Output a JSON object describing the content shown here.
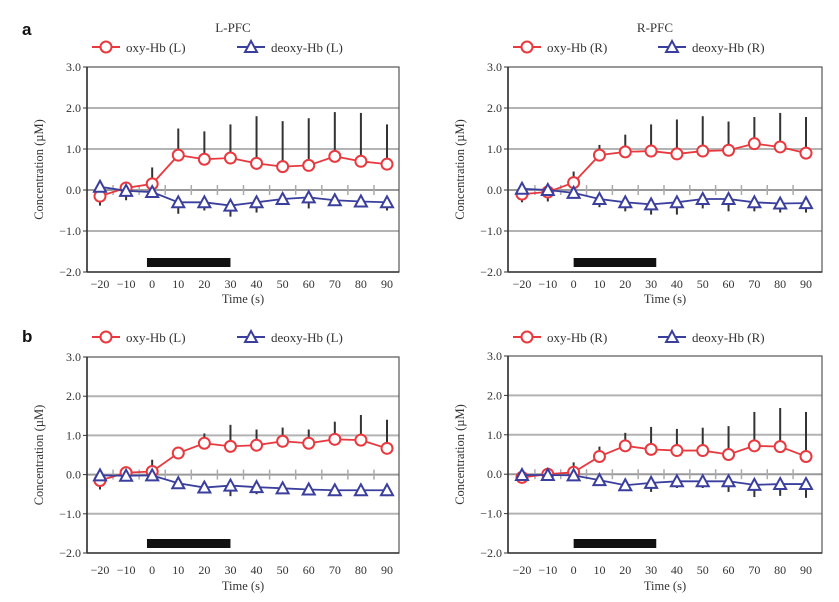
{
  "figure": {
    "row_labels": [
      "a",
      "b"
    ]
  },
  "chart_data": [
    {
      "id": "a-left",
      "type": "line",
      "row": "a",
      "title": "L-PFC",
      "xlabel": "Time (s)",
      "ylabel": "Concentration (µM)",
      "x": [
        -20,
        -10,
        0,
        10,
        20,
        30,
        40,
        50,
        60,
        70,
        80,
        90
      ],
      "xticks": [
        "−20",
        "−10",
        "0",
        "10",
        "20",
        "30",
        "40",
        "50",
        "60",
        "70",
        "80",
        "90"
      ],
      "ylim": [
        -2.0,
        3.0
      ],
      "yticks": [
        "3.0",
        "2.0",
        "1.0",
        "0.0",
        "−1.0",
        "−2.0"
      ],
      "ytick_values": [
        3.0,
        2.0,
        1.0,
        0.0,
        -1.0,
        -2.0
      ],
      "grid": "horizontal",
      "stimulus_bar": [
        -2,
        30
      ],
      "legend": "top",
      "series": [
        {
          "name": "oxy-Hb (L)",
          "marker": "circle",
          "color": "#e8393f",
          "values": [
            -0.15,
            0.05,
            0.15,
            0.85,
            0.75,
            0.78,
            0.65,
            0.57,
            0.6,
            0.82,
            0.7,
            0.63
          ],
          "error_top": [
            -0.15,
            0.05,
            0.55,
            1.5,
            1.43,
            1.6,
            1.8,
            1.68,
            1.75,
            1.9,
            1.88,
            1.6
          ]
        },
        {
          "name": "deoxy-Hb (L)",
          "marker": "triangle",
          "color": "#3a3f9e",
          "values": [
            0.08,
            -0.02,
            -0.05,
            -0.3,
            -0.3,
            -0.38,
            -0.3,
            -0.22,
            -0.18,
            -0.25,
            -0.28,
            -0.3
          ],
          "error_bottom": [
            -0.38,
            -0.25,
            -0.05,
            -0.58,
            -0.5,
            -0.65,
            -0.55,
            -0.22,
            -0.45,
            -0.25,
            -0.28,
            -0.5
          ]
        }
      ]
    },
    {
      "id": "a-right",
      "type": "line",
      "row": "a",
      "title": "R-PFC",
      "xlabel": "Time (s)",
      "ylabel": "Concentration (µM)",
      "x": [
        -20,
        -10,
        0,
        10,
        20,
        30,
        40,
        50,
        60,
        70,
        80,
        90
      ],
      "xticks": [
        "−20",
        "−10",
        "0",
        "10",
        "20",
        "30",
        "40",
        "50",
        "60",
        "70",
        "80",
        "90"
      ],
      "ylim": [
        -2.0,
        3.0
      ],
      "yticks": [
        "3.0",
        "2.0",
        "1.0",
        "0.0",
        "−1.0",
        "−2.0"
      ],
      "ytick_values": [
        3.0,
        2.0,
        1.0,
        0.0,
        -1.0,
        -2.0
      ],
      "grid": "horizontal",
      "stimulus_bar": [
        0,
        32
      ],
      "legend": "top",
      "series": [
        {
          "name": "oxy-Hb (R)",
          "marker": "circle",
          "color": "#e8393f",
          "values": [
            -0.1,
            -0.05,
            0.18,
            0.85,
            0.93,
            0.95,
            0.88,
            0.95,
            0.97,
            1.13,
            1.05,
            0.9
          ],
          "error_top": [
            -0.1,
            -0.05,
            0.45,
            1.1,
            1.35,
            1.6,
            1.72,
            1.8,
            1.67,
            1.78,
            1.88,
            1.78
          ]
        },
        {
          "name": "deoxy-Hb (R)",
          "marker": "triangle",
          "color": "#3a3f9e",
          "values": [
            0.03,
            0.0,
            -0.07,
            -0.22,
            -0.3,
            -0.35,
            -0.3,
            -0.22,
            -0.22,
            -0.3,
            -0.33,
            -0.32
          ],
          "error_bottom": [
            -0.3,
            -0.28,
            -0.07,
            -0.42,
            -0.52,
            -0.6,
            -0.6,
            -0.45,
            -0.52,
            -0.52,
            -0.55,
            -0.55
          ]
        }
      ]
    },
    {
      "id": "b-left",
      "type": "line",
      "row": "b",
      "title": "",
      "xlabel": "Time (s)",
      "ylabel": "Concentration (µM)",
      "x": [
        -20,
        -10,
        0,
        10,
        20,
        30,
        40,
        50,
        60,
        70,
        80,
        90
      ],
      "xticks": [
        "−20",
        "−10",
        "0",
        "10",
        "20",
        "30",
        "40",
        "50",
        "60",
        "70",
        "80",
        "90"
      ],
      "ylim": [
        -2.0,
        3.0
      ],
      "yticks": [
        "3.0",
        "2.0",
        "1.0",
        "0.0",
        "−1.0",
        "−2.0"
      ],
      "ytick_values": [
        3.0,
        2.0,
        1.0,
        0.0,
        -1.0,
        -2.0
      ],
      "grid": "horizontal",
      "stimulus_bar": [
        -2,
        30
      ],
      "legend": "top",
      "series": [
        {
          "name": "oxy-Hb (L)",
          "marker": "circle",
          "color": "#e8393f",
          "values": [
            -0.15,
            0.05,
            0.08,
            0.55,
            0.8,
            0.72,
            0.75,
            0.85,
            0.8,
            0.9,
            0.88,
            0.67
          ],
          "error_top": [
            -0.15,
            0.05,
            0.38,
            0.55,
            1.05,
            1.27,
            1.15,
            1.2,
            1.15,
            1.35,
            1.52,
            1.4
          ]
        },
        {
          "name": "deoxy-Hb (L)",
          "marker": "triangle",
          "color": "#3a3f9e",
          "values": [
            -0.02,
            -0.03,
            -0.02,
            -0.22,
            -0.33,
            -0.28,
            -0.32,
            -0.35,
            -0.38,
            -0.4,
            -0.4,
            -0.4
          ],
          "error_bottom": [
            -0.38,
            -0.03,
            -0.02,
            -0.22,
            -0.33,
            -0.55,
            -0.5,
            -0.35,
            -0.5,
            -0.4,
            -0.4,
            -0.55
          ]
        }
      ]
    },
    {
      "id": "b-right",
      "type": "line",
      "row": "b",
      "title": "",
      "xlabel": "Time (s)",
      "ylabel": "Concentration (µM)",
      "x": [
        -20,
        -10,
        0,
        10,
        20,
        30,
        40,
        50,
        60,
        70,
        80,
        90
      ],
      "xticks": [
        "−20",
        "−10",
        "0",
        "10",
        "20",
        "30",
        "40",
        "50",
        "60",
        "70",
        "80",
        "90"
      ],
      "ylim": [
        -2.0,
        3.0
      ],
      "yticks": [
        "3.0",
        "2.0",
        "1.0",
        "0.0",
        "−1.0",
        "−2.0"
      ],
      "ytick_values": [
        3.0,
        2.0,
        1.0,
        0.0,
        -1.0,
        -2.0
      ],
      "grid": "horizontal",
      "stimulus_bar": [
        0,
        32
      ],
      "legend": "top",
      "series": [
        {
          "name": "oxy-Hb (R)",
          "marker": "circle",
          "color": "#e8393f",
          "values": [
            -0.08,
            0.0,
            0.05,
            0.45,
            0.72,
            0.63,
            0.6,
            0.6,
            0.5,
            0.72,
            0.7,
            0.45
          ],
          "error_top": [
            -0.08,
            0.0,
            0.3,
            0.7,
            1.05,
            1.2,
            1.15,
            1.18,
            1.22,
            1.58,
            1.68,
            1.58
          ]
        },
        {
          "name": "deoxy-Hb (R)",
          "marker": "triangle",
          "color": "#3a3f9e",
          "values": [
            -0.02,
            -0.02,
            -0.03,
            -0.15,
            -0.28,
            -0.22,
            -0.18,
            -0.18,
            -0.18,
            -0.27,
            -0.25,
            -0.25
          ],
          "error_bottom": [
            -0.2,
            -0.02,
            -0.03,
            -0.15,
            -0.28,
            -0.45,
            -0.35,
            -0.35,
            -0.45,
            -0.58,
            -0.55,
            -0.6
          ]
        }
      ]
    }
  ]
}
